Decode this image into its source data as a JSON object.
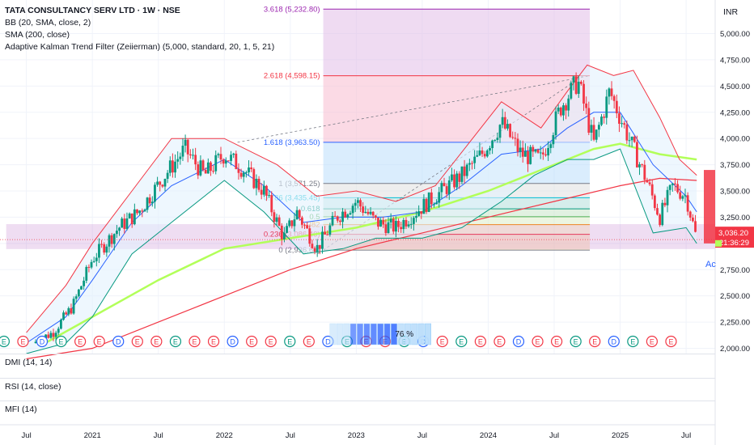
{
  "legend": {
    "title": "TATA CONSULTANCY SERV LTD · 1W · NSE",
    "indicators": [
      "BB (20, SMA, close, 2)",
      "SMA (200, close)",
      "Adaptive Kalman Trend Filter (Zeiierman) (5,000, standard, 20, 1, 5, 21)"
    ]
  },
  "currency": "INR",
  "panes": [
    "DMI (14, 14)",
    "RSI (14, close)",
    "MFI (14)"
  ],
  "price_label": "3,036.20",
  "countdown": "21:36:29",
  "histogram_label": "76 %",
  "cut_text": "Ac",
  "colors": {
    "up": "#089981",
    "down": "#f23645",
    "bb": "#f23645",
    "bb_mid": "#2962ff",
    "sma": "#f23645",
    "kalman": "#b2ff59",
    "fib_zone": "#f8bbd0",
    "box": "#ab47bc"
  },
  "chart_data": {
    "type": "candlestick",
    "title": "TATA CONSULTANCY SERV LTD · 1W · NSE",
    "yticks": [
      2000,
      2250,
      2500,
      2750,
      3000,
      3250,
      3500,
      3750,
      4000,
      4250,
      4500,
      4750,
      5000
    ],
    "ytick_labels": [
      "2,000.00",
      "2,250.00",
      "2,500.00",
      "2,750.00",
      "3,000.00",
      "3,250.00",
      "3,500.00",
      "3,750.00",
      "4,000.00",
      "4,250.00",
      "4,500.00",
      "4,750.00",
      "5,000.00"
    ],
    "xticks": [
      "Jul",
      "2021",
      "Jul",
      "2022",
      "Jul",
      "2023",
      "Jul",
      "2024",
      "Jul",
      "2025",
      "Jul"
    ],
    "close_path": [
      [
        2020.55,
        2050
      ],
      [
        2020.7,
        2150
      ],
      [
        2020.85,
        2400
      ],
      [
        2021.0,
        2850
      ],
      [
        2021.2,
        3150
      ],
      [
        2021.35,
        3300
      ],
      [
        2021.55,
        3650
      ],
      [
        2021.7,
        3900
      ],
      [
        2021.85,
        3650
      ],
      [
        2022.0,
        3850
      ],
      [
        2022.15,
        3700
      ],
      [
        2022.3,
        3500
      ],
      [
        2022.45,
        3050
      ],
      [
        2022.55,
        3300
      ],
      [
        2022.7,
        2950
      ],
      [
        2022.85,
        3250
      ],
      [
        2023.0,
        3400
      ],
      [
        2023.15,
        3200
      ],
      [
        2023.3,
        3150
      ],
      [
        2023.45,
        3300
      ],
      [
        2023.6,
        3450
      ],
      [
        2023.8,
        3650
      ],
      [
        2023.95,
        3850
      ],
      [
        2024.1,
        4150
      ],
      [
        2024.25,
        3850
      ],
      [
        2024.4,
        3800
      ],
      [
        2024.55,
        4300
      ],
      [
        2024.68,
        4550
      ],
      [
        2024.8,
        3950
      ],
      [
        2024.92,
        4450
      ],
      [
        2025.05,
        4050
      ],
      [
        2025.2,
        3600
      ],
      [
        2025.3,
        3250
      ],
      [
        2025.4,
        3550
      ],
      [
        2025.5,
        3450
      ],
      [
        2025.58,
        3036.2
      ]
    ],
    "bb_upper": [
      [
        2020.5,
        2150
      ],
      [
        2020.8,
        2600
      ],
      [
        2021.0,
        3000
      ],
      [
        2021.3,
        3500
      ],
      [
        2021.6,
        4000
      ],
      [
        2022.0,
        4000
      ],
      [
        2022.4,
        3750
      ],
      [
        2022.7,
        3450
      ],
      [
        2023.0,
        3500
      ],
      [
        2023.3,
        3400
      ],
      [
        2023.6,
        3550
      ],
      [
        2023.85,
        3950
      ],
      [
        2024.1,
        4350
      ],
      [
        2024.4,
        4100
      ],
      [
        2024.6,
        4450
      ],
      [
        2024.75,
        4700
      ],
      [
        2024.95,
        4600
      ],
      [
        2025.1,
        4650
      ],
      [
        2025.3,
        4200
      ],
      [
        2025.45,
        3800
      ],
      [
        2025.58,
        3650
      ]
    ],
    "bb_lower": [
      [
        2020.5,
        1950
      ],
      [
        2020.8,
        2050
      ],
      [
        2021.0,
        2300
      ],
      [
        2021.3,
        2900
      ],
      [
        2021.6,
        3200
      ],
      [
        2022.0,
        3600
      ],
      [
        2022.3,
        3300
      ],
      [
        2022.6,
        2900
      ],
      [
        2022.9,
        2950
      ],
      [
        2023.15,
        3050
      ],
      [
        2023.5,
        3050
      ],
      [
        2023.8,
        3150
      ],
      [
        2024.1,
        3400
      ],
      [
        2024.35,
        3650
      ],
      [
        2024.6,
        3800
      ],
      [
        2024.8,
        3800
      ],
      [
        2025.0,
        3900
      ],
      [
        2025.25,
        3100
      ],
      [
        2025.5,
        3150
      ],
      [
        2025.58,
        3000
      ]
    ],
    "bb_mid": [
      [
        2020.5,
        2050
      ],
      [
        2020.8,
        2300
      ],
      [
        2021.0,
        2650
      ],
      [
        2021.3,
        3200
      ],
      [
        2021.6,
        3550
      ],
      [
        2022.0,
        3800
      ],
      [
        2022.3,
        3550
      ],
      [
        2022.6,
        3200
      ],
      [
        2022.9,
        3250
      ],
      [
        2023.2,
        3250
      ],
      [
        2023.5,
        3300
      ],
      [
        2023.8,
        3550
      ],
      [
        2024.1,
        3850
      ],
      [
        2024.4,
        3900
      ],
      [
        2024.6,
        4100
      ],
      [
        2024.8,
        4250
      ],
      [
        2025.0,
        4250
      ],
      [
        2025.25,
        3750
      ],
      [
        2025.5,
        3450
      ],
      [
        2025.58,
        3300
      ]
    ],
    "sma200": [
      [
        2020.5,
        1900
      ],
      [
        2021.0,
        2000
      ],
      [
        2021.5,
        2250
      ],
      [
        2022.0,
        2500
      ],
      [
        2022.5,
        2750
      ],
      [
        2023.0,
        2950
      ],
      [
        2023.5,
        3100
      ],
      [
        2024.0,
        3250
      ],
      [
        2024.5,
        3400
      ],
      [
        2025.0,
        3550
      ],
      [
        2025.3,
        3620
      ],
      [
        2025.58,
        3600
      ]
    ],
    "kalman": [
      [
        2020.6,
        2020
      ],
      [
        2021.0,
        2300
      ],
      [
        2021.5,
        2650
      ],
      [
        2022.0,
        2950
      ],
      [
        2022.5,
        3050
      ],
      [
        2023.0,
        3150
      ],
      [
        2023.5,
        3300
      ],
      [
        2024.0,
        3500
      ],
      [
        2024.5,
        3750
      ],
      [
        2024.8,
        3900
      ],
      [
        2025.0,
        3950
      ],
      [
        2025.3,
        3850
      ],
      [
        2025.58,
        3800
      ]
    ],
    "fib_levels": [
      {
        "ratio": "0",
        "value": 2936.6,
        "label": "0 (2,936.60)"
      },
      {
        "ratio": "0.236",
        "value": 3086.4,
        "label": "0.236 (3,086.40)"
      },
      {
        "ratio": "0.382",
        "value": 3179.0,
        "label": "0.382"
      },
      {
        "ratio": "0.5",
        "value": 3254.0,
        "label": "0.5"
      },
      {
        "ratio": "0.618",
        "value": 3329.0,
        "label": "0.618"
      },
      {
        "ratio": "0.786",
        "value": 3435.45,
        "label": "0.786 (3,435.45)"
      },
      {
        "ratio": "1",
        "value": 3571.25,
        "label": "1 (3,571.25)"
      },
      {
        "ratio": "1.618",
        "value": 3963.5,
        "label": "1.618 (3,963.50)"
      },
      {
        "ratio": "2.618",
        "value": 4598.15,
        "label": "2.618 (4,598.15)"
      },
      {
        "ratio": "3.618",
        "value": 5232.8,
        "label": "3.618 (5,232.80)"
      }
    ],
    "fib_range": [
      2022.75,
      2024.77
    ],
    "support_zone": [
      2950,
      3180
    ],
    "last_price": 3036.2,
    "ylim": [
      1950,
      5320
    ],
    "xlim": [
      2020.3,
      2025.72
    ]
  },
  "events": [
    "E",
    "E",
    "D",
    "E",
    "E",
    "E",
    "D",
    "E",
    "E",
    "E",
    "E",
    "E",
    "D",
    "E",
    "E",
    "E",
    "E",
    "D",
    "E",
    "E",
    "E",
    "E",
    "D",
    "E",
    "E",
    "E",
    "E",
    "D",
    "E",
    "E",
    "E",
    "E",
    "D",
    "E",
    "E",
    "E"
  ]
}
